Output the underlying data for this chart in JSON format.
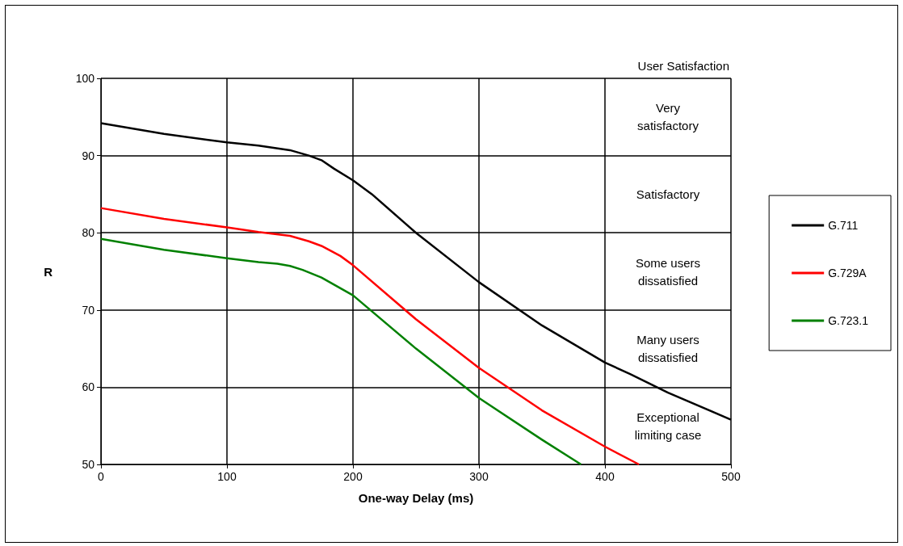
{
  "chart_data": {
    "type": "line",
    "xlabel": "One-way Delay (ms)",
    "ylabel": "R",
    "xlim": [
      0,
      500
    ],
    "xticks": [
      0,
      100,
      200,
      300,
      400,
      500
    ],
    "ylim": [
      50,
      100
    ],
    "yticks": [
      50,
      60,
      70,
      80,
      90,
      100
    ],
    "grid": true,
    "legend": "right",
    "marker": "none",
    "line_style": "solid",
    "series": [
      {
        "name": "G.711",
        "color": "#000000",
        "x": [
          0,
          50,
          100,
          125,
          150,
          165,
          175,
          185,
          200,
          215,
          250,
          300,
          350,
          400,
          420,
          450,
          500
        ],
        "values": [
          94.2,
          92.8,
          91.7,
          91.3,
          90.7,
          90,
          89.4,
          88.3,
          86.8,
          85,
          80,
          73.6,
          68,
          63.2,
          61.7,
          59.3,
          55.8
        ]
      },
      {
        "name": "G.729A",
        "color": "#ff0000",
        "x": [
          0,
          50,
          100,
          125,
          150,
          165,
          175,
          190,
          200,
          250,
          300,
          350,
          400,
          427
        ],
        "values": [
          83.2,
          81.8,
          80.7,
          80.1,
          79.6,
          78.9,
          78.3,
          77,
          75.8,
          68.8,
          62.5,
          57,
          52.3,
          50
        ]
      },
      {
        "name": "G.723.1",
        "color": "#008000",
        "x": [
          0,
          50,
          100,
          125,
          140,
          150,
          160,
          175,
          200,
          250,
          300,
          350,
          381
        ],
        "values": [
          79.2,
          77.8,
          76.7,
          76.2,
          76,
          75.7,
          75.2,
          74.2,
          71.9,
          65,
          58.6,
          53.2,
          50
        ]
      }
    ],
    "annotations": [
      "User Satisfaction",
      "Very\nsatisfactory",
      "Satisfactory",
      "Some users\ndissatisfied",
      "Many users\ndissatisfied",
      "Exceptional\nlimiting case"
    ]
  }
}
